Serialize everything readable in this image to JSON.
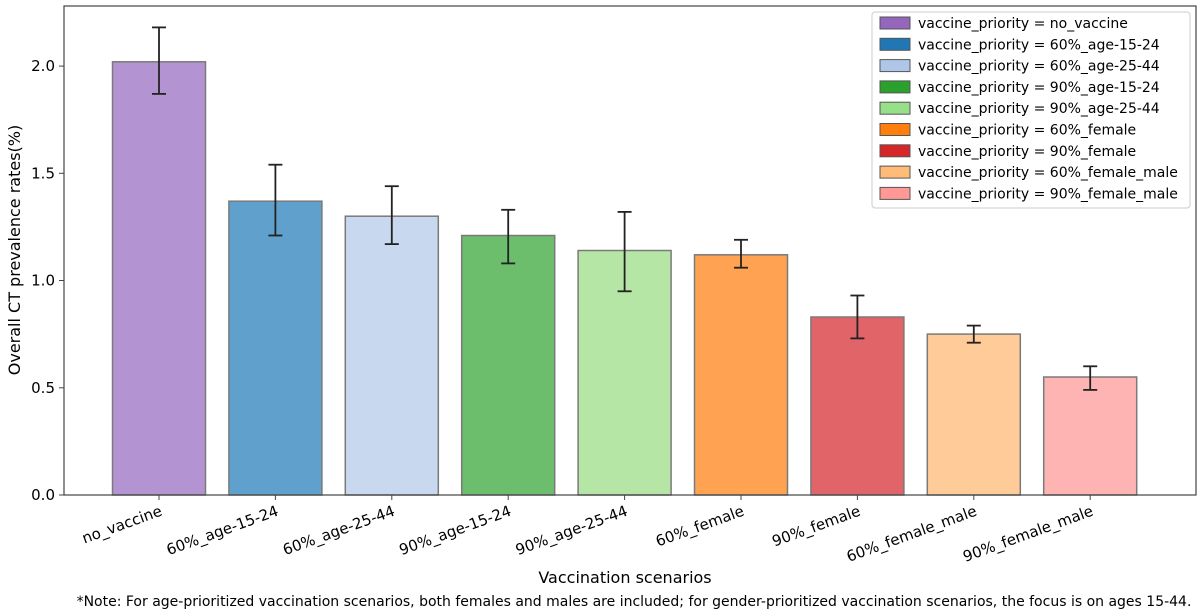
{
  "chart_data": {
    "type": "bar",
    "title": "",
    "xlabel": "Vaccination scenarios",
    "ylabel": "Overall CT prevalence rates(%)",
    "ylim": [
      0,
      2.28
    ],
    "yticks": [
      "0.0",
      "0.5",
      "1.0",
      "1.5",
      "2.0"
    ],
    "categories": [
      "no_vaccine",
      "60%_age-15-24",
      "60%_age-25-44",
      "90%_age-15-24",
      "90%_age-25-44",
      "60%_female",
      "90%_female",
      "60%_female_male",
      "90%_female_male"
    ],
    "values": [
      2.02,
      1.37,
      1.3,
      1.21,
      1.14,
      1.12,
      0.83,
      0.75,
      0.55
    ],
    "error_low": [
      1.87,
      1.21,
      1.17,
      1.08,
      0.95,
      1.06,
      0.73,
      0.71,
      0.49
    ],
    "error_high": [
      2.18,
      1.54,
      1.44,
      1.33,
      1.32,
      1.19,
      0.93,
      0.79,
      0.6
    ],
    "colors": [
      "#b393d1",
      "#5fa0cc",
      "#c8d8ee",
      "#6cbd6c",
      "#b6e6a6",
      "#ffa352",
      "#e06468",
      "#ffcb99",
      "#ffb4b4"
    ],
    "legend_position": "top-right",
    "legend": [
      "vaccine_priority = no_vaccine",
      "vaccine_priority = 60%_age-15-24",
      "vaccine_priority = 60%_age-25-44",
      "vaccine_priority = 90%_age-15-24",
      "vaccine_priority = 90%_age-25-44",
      "vaccine_priority = 60%_female",
      "vaccine_priority = 90%_female",
      "vaccine_priority = 60%_female_male",
      "vaccine_priority = 90%_female_male"
    ],
    "legend_colors": [
      "#9467bd",
      "#1f77b4",
      "#aec7e8",
      "#2ca02c",
      "#98df8a",
      "#ff7f0e",
      "#d62728",
      "#ffbb78",
      "#ff9896"
    ],
    "grid": false,
    "note": "*Note: For age-prioritized vaccination scenarios, both females and males are included; for gender-prioritized vaccination scenarios, the focus is on ages 15-44."
  }
}
